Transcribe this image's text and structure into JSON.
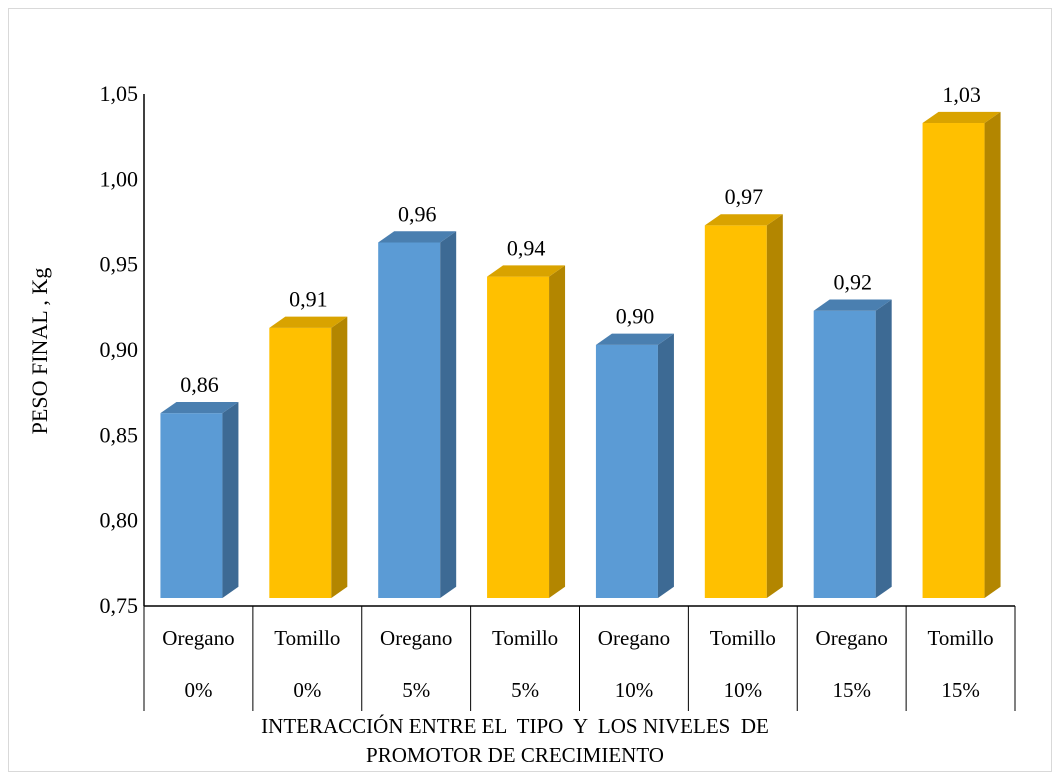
{
  "chart_data": {
    "type": "bar",
    "style": "3d-column",
    "title": "",
    "ylabel": "PESO FINAL , Kg",
    "xlabel_lines": [
      "INTERACCIÓN ENTRE EL  TIPO  Y  LOS NIVELES  DE",
      "PROMOTOR DE CRECIMIENTO"
    ],
    "ylim": [
      0.75,
      1.05
    ],
    "ytick_step": 0.05,
    "ytick_labels": [
      "0,75",
      "0,80",
      "0,85",
      "0,90",
      "0,95",
      "1,00",
      "1,05"
    ],
    "grid": false,
    "legend": "none",
    "categories": [
      {
        "type": "Oregano",
        "level": "0%"
      },
      {
        "type": "Tomillo",
        "level": "0%"
      },
      {
        "type": "Oregano",
        "level": "5%"
      },
      {
        "type": "Tomillo",
        "level": "5%"
      },
      {
        "type": "Oregano",
        "level": "10%"
      },
      {
        "type": "Tomillo",
        "level": "10%"
      },
      {
        "type": "Oregano",
        "level": "15%"
      },
      {
        "type": "Tomillo",
        "level": "15%"
      }
    ],
    "values": [
      0.863,
      0.913,
      0.963,
      0.943,
      0.903,
      0.973,
      0.923,
      1.033
    ],
    "data_labels": [
      "0,86",
      "0,91",
      "0,96",
      "0,94",
      "0,90",
      "0,97",
      "0,92",
      "1,03"
    ],
    "colors": {
      "Oregano": {
        "front": "#5b9bd5",
        "side": "#3d6a94",
        "top": "#4a7fb0"
      },
      "Tomillo": {
        "front": "#ffc000",
        "side": "#b38600",
        "top": "#d9a300"
      }
    }
  }
}
